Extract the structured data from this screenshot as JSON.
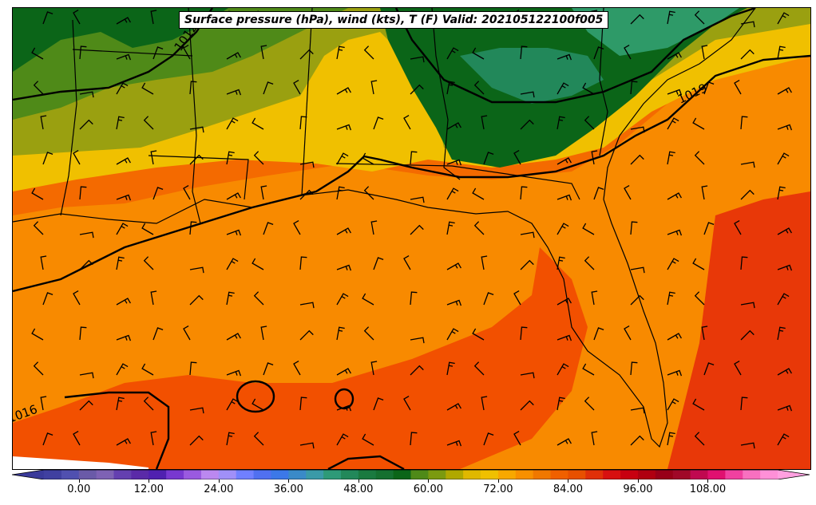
{
  "title": "Surface pressure (hPa), wind (kts), T (F) Valid: 202105122100f005",
  "isobar_labels": [
    "1016",
    "1019",
    "1012"
  ],
  "colorbar": {
    "ticks": [
      "0.00",
      "12.00",
      "24.00",
      "36.00",
      "48.00",
      "60.00",
      "72.00",
      "84.00",
      "96.00",
      "108.00"
    ],
    "tick_values": [
      0,
      12,
      24,
      36,
      48,
      60,
      72,
      84,
      96,
      108
    ],
    "min": -6,
    "max": 120,
    "colors": [
      "#4040a0",
      "#5050b0",
      "#6a5aa8",
      "#7e62b4",
      "#6440b0",
      "#5a2aa8",
      "#5020b0",
      "#7838d0",
      "#9a5ae0",
      "#bb88f0",
      "#a090f8",
      "#7080ff",
      "#5070f0",
      "#3c78e8",
      "#3a8ac8",
      "#3a9aa8",
      "#2e9a78",
      "#22885a",
      "#1a7a40",
      "#157030",
      "#0b6518",
      "#4f8a18",
      "#7b9a10",
      "#b0a800",
      "#e0b800",
      "#f0c000",
      "#f8a800",
      "#f89000",
      "#f07800",
      "#f06000",
      "#e85000",
      "#e03008",
      "#d81010",
      "#c80010",
      "#b00010",
      "#980018",
      "#a00828",
      "#c00850",
      "#e01070",
      "#f040a0",
      "#f870c0",
      "#ff90d8"
    ]
  },
  "map": {
    "colors": {
      "dark_green": "#0b6518",
      "mid_green": "#22885a",
      "light_green": "#2e9a68",
      "olive": "#4f8a18",
      "olive_yellow": "#9aa010",
      "yellow": "#f0c000",
      "light_orange": "#f8a800",
      "orange": "#f88a00",
      "dark_orange": "#f46a00",
      "red_orange": "#f25000",
      "red": "#e83808"
    }
  }
}
